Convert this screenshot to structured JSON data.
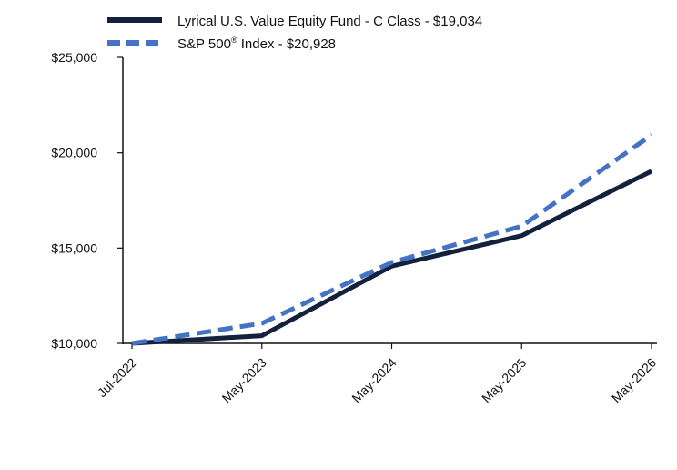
{
  "chart_data": {
    "type": "line",
    "categories": [
      "Jul-2022",
      "May-2023",
      "May-2024",
      "May-2025",
      "May-2026"
    ],
    "series": [
      {
        "name": "Lyrical U.S. Value Equity Fund - C Class - $19,034",
        "values": [
          10000,
          10400,
          14050,
          15650,
          19034
        ],
        "color": "#14213d",
        "style": "solid"
      },
      {
        "name": "S&P 500",
        "name_sup": "®",
        "name_suffix": " Index - $20,928",
        "values": [
          10000,
          11050,
          14250,
          16150,
          20928
        ],
        "color": "#4472c4",
        "style": "dashed"
      }
    ],
    "y_ticks": [
      "$10,000",
      "$15,000",
      "$20,000",
      "$25,000"
    ],
    "ylim": [
      10000,
      25000
    ],
    "grid": false,
    "legend_position": "top-left"
  }
}
